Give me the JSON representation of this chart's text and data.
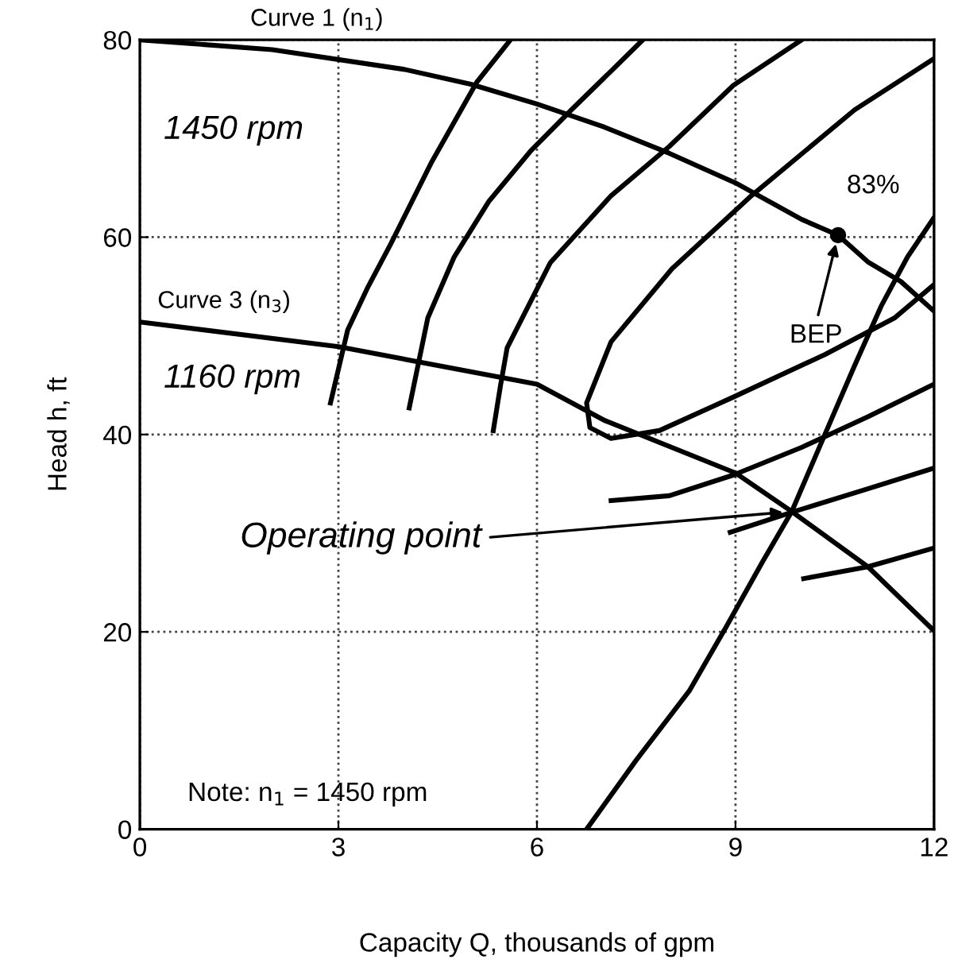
{
  "chart_data": {
    "type": "line",
    "xlabel": "Capacity Q, thousands of gpm",
    "ylabel": "Head h, ft",
    "xlim": [
      0,
      12
    ],
    "ylim": [
      0,
      80
    ],
    "xticks": [
      0,
      3,
      6,
      9,
      12
    ],
    "yticks": [
      0,
      20,
      40,
      60,
      80
    ],
    "grid": true,
    "marker": "none",
    "line_style": "solid",
    "series": [
      {
        "name": "Curve 1 (n$_{1}$)",
        "color": "#000000",
        "x": [
          0,
          2,
          4,
          5,
          6,
          7,
          8,
          9,
          10,
          10.55,
          11,
          11.5,
          12
        ],
        "values": [
          80,
          79,
          77,
          75.5,
          73.5,
          71.2,
          68.5,
          65.5,
          61.8,
          60.2,
          57.5,
          55.5,
          52.5
        ]
      },
      {
        "name": "Curve 3 (n$_{3}$)",
        "color": "#000000",
        "x": [
          0,
          3,
          6,
          7.03,
          9,
          9.85,
          11,
          12
        ],
        "values": [
          51.4,
          48.9,
          45.1,
          41.4,
          36.1,
          32.2,
          26.6,
          20.1
        ]
      },
      {
        "color": "#000000",
        "x": [
          6.75,
          7.5,
          8.3,
          8.85,
          9.4,
          9.85,
          10.35,
          10.8,
          11.2,
          11.6,
          12
        ],
        "values": [
          0,
          7,
          14,
          20.4,
          27,
          32.2,
          40,
          47,
          53,
          58,
          62
        ]
      },
      {
        "color": "#000000",
        "x": [
          2.88,
          3.14,
          3.45,
          3.79,
          4.4,
          5.09,
          5.6
        ],
        "values": [
          43.2,
          50.6,
          55,
          59.3,
          67.5,
          75.7,
          80
        ]
      },
      {
        "color": "#000000",
        "x": [
          4.07,
          4.35,
          4.75,
          5.27,
          5.9,
          6.52,
          7.1,
          7.6
        ],
        "values": [
          42.7,
          51.8,
          58,
          63.6,
          68.7,
          72.9,
          76.7,
          80
        ]
      },
      {
        "color": "#000000",
        "x": [
          5.34,
          5.45,
          5.55,
          6.2,
          7.12,
          8.0,
          8.97,
          10
        ],
        "values": [
          40.4,
          45,
          48.8,
          57.4,
          64.2,
          69.2,
          75.4,
          80
        ]
      },
      {
        "color": "#000000",
        "x": [
          12,
          10.8,
          9.24,
          8.04,
          7.12,
          6.75,
          6.8,
          7.12,
          7.85,
          8.97,
          10.35,
          11.4,
          12
        ],
        "values": [
          78.1,
          72.9,
          64.2,
          56.8,
          49.4,
          43.2,
          40.7,
          39.6,
          40.4,
          43.8,
          48.1,
          51.8,
          55.2
        ]
      },
      {
        "color": "#000000",
        "x": [
          7.12,
          8,
          8.97,
          10,
          11,
          12
        ],
        "values": [
          33.3,
          33.8,
          35.9,
          38.7,
          41.8,
          45.1
        ]
      },
      {
        "color": "#000000",
        "x": [
          8.92,
          9.89,
          11,
          12
        ],
        "values": [
          30.1,
          32.2,
          34.5,
          36.6
        ]
      },
      {
        "color": "#000000",
        "x": [
          10.03,
          11,
          12
        ],
        "values": [
          25.4,
          26.6,
          28.5
        ]
      },
      {
        "type": "scatter",
        "marker": "circle",
        "color": "#000000",
        "x": [
          10.55
        ],
        "values": [
          60.2
        ]
      }
    ],
    "annotations": [
      "1450 rpm",
      "1160 rpm",
      "83%",
      {
        "text": "BEP",
        "x": 10.55,
        "y": 60.2
      },
      {
        "text": "Operating point",
        "x": 9.85,
        "y": 32.2
      },
      "Note: n$_{1}$ = 1450 rpm"
    ]
  }
}
